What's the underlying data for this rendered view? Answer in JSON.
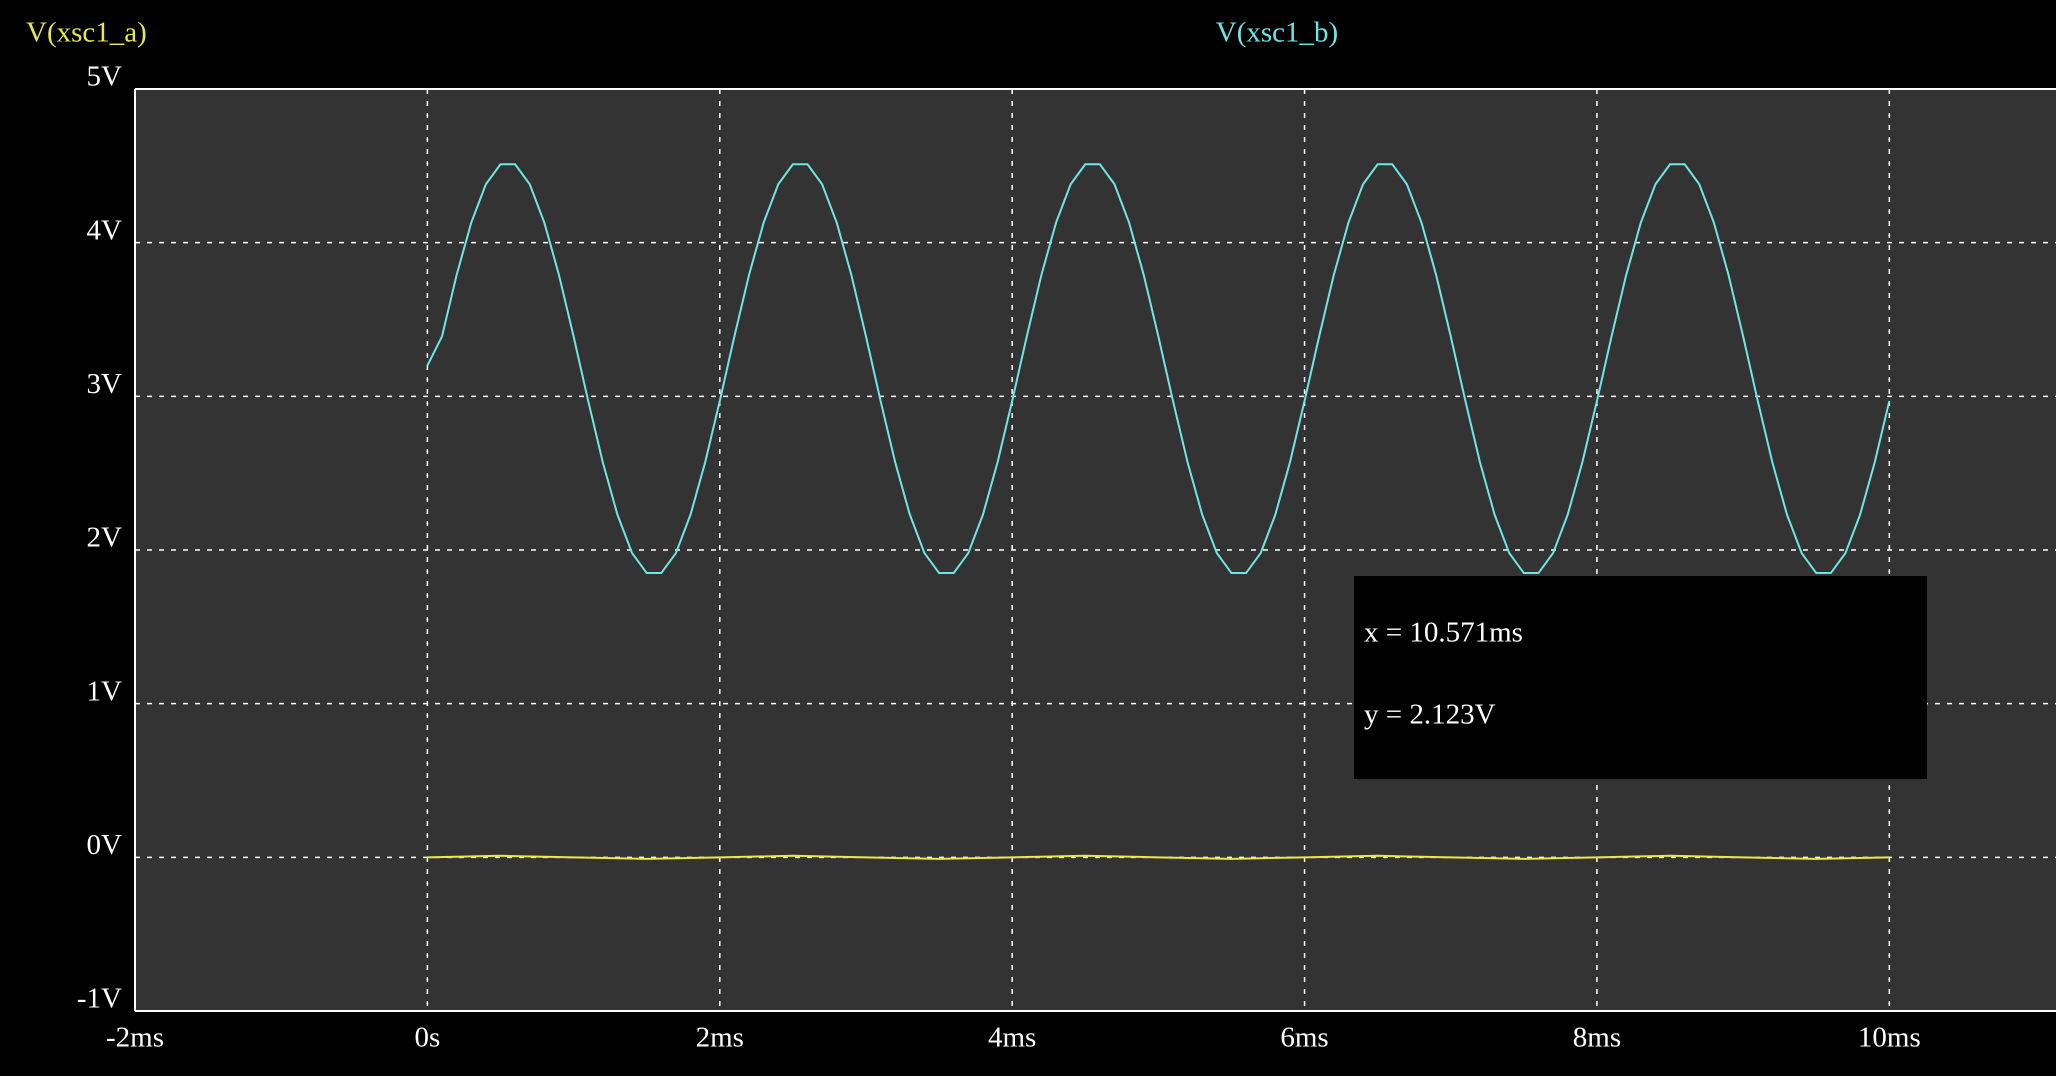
{
  "chart_data": {
    "type": "line",
    "series": [
      {
        "name": "V(xsc1_a)",
        "color": "#e8e84a",
        "x": [
          0,
          0.5,
          1,
          1.5,
          2,
          2.5,
          3,
          3.5,
          4,
          4.5,
          5,
          5.5,
          6,
          6.5,
          7,
          7.5,
          8,
          8.5,
          9,
          9.5,
          10
        ],
        "values": [
          0,
          0.01,
          0,
          -0.01,
          0,
          0.01,
          0,
          -0.01,
          0,
          0.01,
          0,
          -0.01,
          0,
          0.01,
          0,
          -0.01,
          0,
          0.01,
          0,
          -0.01,
          0
        ]
      },
      {
        "name": "V(xsc1_b)",
        "color": "#6ee6e6",
        "x": [
          0,
          0.1,
          0.2,
          0.3,
          0.4,
          0.5,
          0.6,
          0.7,
          0.8,
          0.9,
          1,
          1.1,
          1.2,
          1.3,
          1.4,
          1.5,
          1.6,
          1.7,
          1.8,
          1.9,
          2,
          2.1,
          2.2,
          2.3,
          2.4,
          2.5,
          2.6,
          2.7,
          2.8,
          2.9,
          3,
          3.1,
          3.2,
          3.3,
          3.4,
          3.5,
          3.6,
          3.7,
          3.8,
          3.9,
          4,
          4.1,
          4.2,
          4.3,
          4.4,
          4.5,
          4.6,
          4.7,
          4.8,
          4.9,
          5,
          5.1,
          5.2,
          5.3,
          5.4,
          5.5,
          5.6,
          5.7,
          5.8,
          5.9,
          6,
          6.1,
          6.2,
          6.3,
          6.4,
          6.5,
          6.6,
          6.7,
          6.8,
          6.9,
          7,
          7.1,
          7.2,
          7.3,
          7.4,
          7.5,
          7.6,
          7.7,
          7.8,
          7.9,
          8,
          8.1,
          8.2,
          8.3,
          8.4,
          8.5,
          8.6,
          8.7,
          8.8,
          8.9,
          9,
          9.1,
          9.2,
          9.3,
          9.4,
          9.5,
          9.6,
          9.7,
          9.8,
          9.9,
          10
        ],
        "values": [
          3.2,
          3.39,
          3.79,
          4.13,
          4.38,
          4.51,
          4.51,
          4.38,
          4.13,
          3.79,
          3.39,
          2.97,
          2.57,
          2.23,
          1.98,
          1.85,
          1.85,
          1.98,
          2.23,
          2.57,
          2.97,
          3.39,
          3.79,
          4.13,
          4.38,
          4.51,
          4.51,
          4.38,
          4.13,
          3.79,
          3.39,
          2.97,
          2.57,
          2.23,
          1.98,
          1.85,
          1.85,
          1.98,
          2.23,
          2.57,
          2.97,
          3.39,
          3.79,
          4.13,
          4.38,
          4.51,
          4.51,
          4.38,
          4.13,
          3.79,
          3.39,
          2.97,
          2.57,
          2.23,
          1.98,
          1.85,
          1.85,
          1.98,
          2.23,
          2.57,
          2.97,
          3.39,
          3.79,
          4.13,
          4.38,
          4.51,
          4.51,
          4.38,
          4.13,
          3.79,
          3.39,
          2.97,
          2.57,
          2.23,
          1.98,
          1.85,
          1.85,
          1.98,
          2.23,
          2.57,
          2.97,
          3.39,
          3.79,
          4.13,
          4.38,
          4.51,
          4.51,
          4.38,
          4.13,
          3.79,
          3.39,
          2.97,
          2.57,
          2.23,
          1.98,
          1.85,
          1.85,
          1.98,
          2.23,
          2.57,
          2.97
        ]
      }
    ],
    "xlim": [
      -2,
      11.14
    ],
    "ylim": [
      -1,
      5
    ],
    "xticks": [
      {
        "value": -2,
        "label": "-2ms"
      },
      {
        "value": 0,
        "label": "0s"
      },
      {
        "value": 2,
        "label": "2ms"
      },
      {
        "value": 4,
        "label": "4ms"
      },
      {
        "value": 6,
        "label": "6ms"
      },
      {
        "value": 8,
        "label": "8ms"
      },
      {
        "value": 10,
        "label": "10ms"
      }
    ],
    "yticks": [
      {
        "value": -1,
        "label": "-1V"
      },
      {
        "value": 0,
        "label": "0V"
      },
      {
        "value": 1,
        "label": "1V"
      },
      {
        "value": 2,
        "label": "2V"
      },
      {
        "value": 3,
        "label": "3V"
      },
      {
        "value": 4,
        "label": "4V"
      },
      {
        "value": 5,
        "label": "5V"
      }
    ],
    "grid": true,
    "annotations": [
      "x = 10.571ms",
      "y = 2.123V"
    ]
  }
}
